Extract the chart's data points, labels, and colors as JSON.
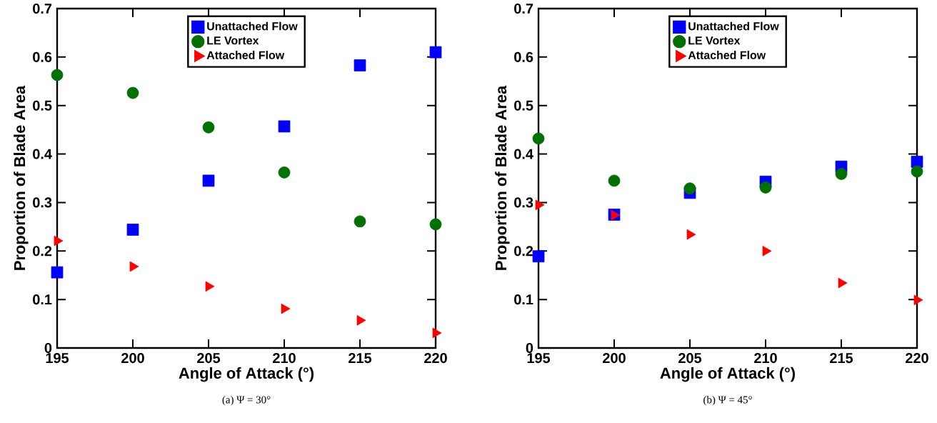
{
  "chart_data": [
    {
      "type": "scatter",
      "xlabel": "Angle of Attack (°)",
      "ylabel": "Proportion of Blade Area",
      "annotations": [
        "(a) Ψ = 30°"
      ],
      "x": [
        195,
        200,
        205,
        210,
        215,
        220
      ],
      "xlim": [
        195,
        220
      ],
      "xticks": [
        195,
        200,
        205,
        210,
        215,
        220
      ],
      "ylim": [
        0,
        0.7
      ],
      "yticks": [
        0,
        0.1,
        0.2,
        0.3,
        0.4,
        0.5,
        0.6,
        0.7
      ],
      "legend": "top",
      "series": [
        {
          "name": "Unattached Flow",
          "color": "#0000ff",
          "marker": "square",
          "values": [
            0.156,
            0.244,
            0.345,
            0.457,
            0.583,
            0.61
          ]
        },
        {
          "name": "LE Vortex",
          "color": "#007000",
          "marker": "circle",
          "values": [
            0.563,
            0.526,
            0.455,
            0.362,
            0.261,
            0.255
          ]
        },
        {
          "name": "Attached Flow",
          "color": "#ff0000",
          "marker": "triangle",
          "values": [
            0.221,
            0.168,
            0.127,
            0.081,
            0.057,
            0.031
          ]
        }
      ]
    },
    {
      "type": "scatter",
      "xlabel": "Angle of Attack (°)",
      "ylabel": "Proportion of Blade Area",
      "annotations": [
        "(b) Ψ = 45°"
      ],
      "x": [
        195,
        200,
        205,
        210,
        215,
        220
      ],
      "xlim": [
        195,
        220
      ],
      "xticks": [
        195,
        200,
        205,
        210,
        215,
        220
      ],
      "ylim": [
        0,
        0.7
      ],
      "yticks": [
        0,
        0.1,
        0.2,
        0.3,
        0.4,
        0.5,
        0.6,
        0.7
      ],
      "legend": "top",
      "series": [
        {
          "name": "Unattached Flow",
          "color": "#0000ff",
          "marker": "square",
          "values": [
            0.189,
            0.275,
            0.32,
            0.343,
            0.374,
            0.384
          ]
        },
        {
          "name": "LE Vortex",
          "color": "#007000",
          "marker": "circle",
          "values": [
            0.432,
            0.345,
            0.329,
            0.331,
            0.359,
            0.364
          ]
        },
        {
          "name": "Attached Flow",
          "color": "#ff0000",
          "marker": "triangle",
          "values": [
            0.295,
            0.274,
            0.234,
            0.2,
            0.134,
            0.099
          ]
        }
      ]
    }
  ]
}
